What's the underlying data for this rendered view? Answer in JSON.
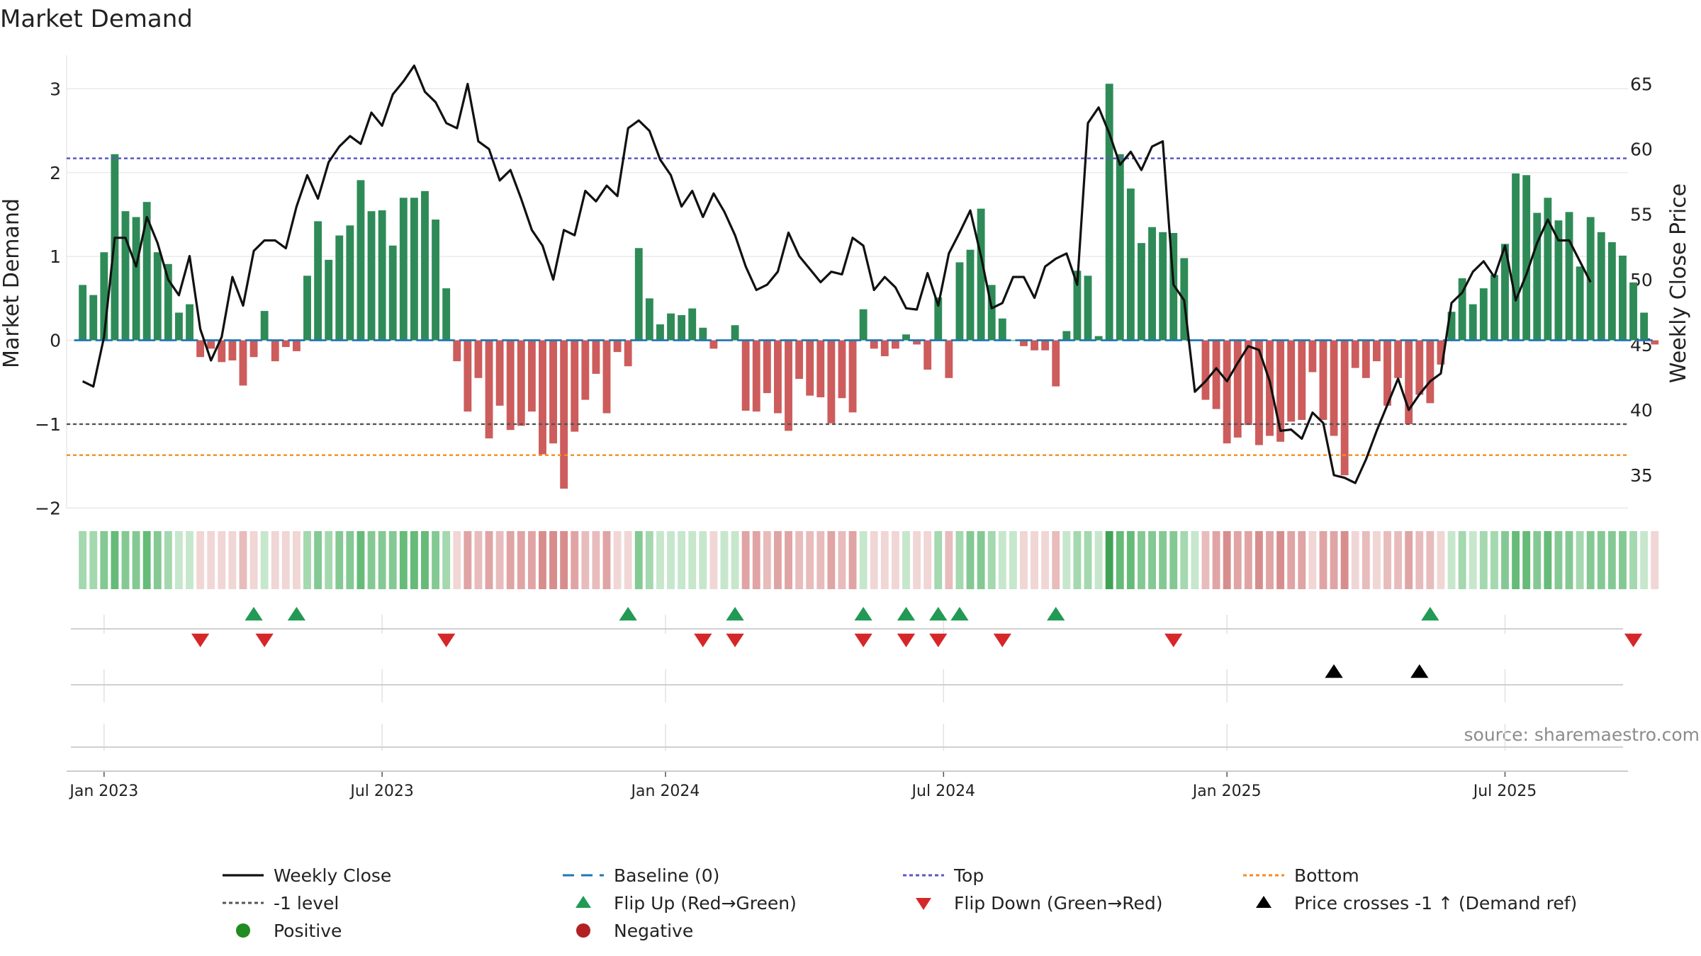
{
  "chart_data": {
    "type": "bar",
    "title": "Market Demand",
    "ylabel": "Market Demand",
    "y2label": "Weekly Close Price",
    "source": "source: sharemaestro.com",
    "ylim": [
      -2.2,
      3.4
    ],
    "y2lim": [
      31.2,
      67.2
    ],
    "yticks": [
      3,
      2,
      1,
      0,
      -1,
      -2
    ],
    "yticklabels": [
      "3",
      "2",
      "1",
      "0",
      "−1",
      "−2"
    ],
    "y2ticks": [
      65,
      60,
      55,
      50,
      45,
      40,
      35
    ],
    "y2ticklabels": [
      "65",
      "60",
      "55",
      "50",
      "45",
      "40",
      "35"
    ],
    "x_index_range": [
      -1.5,
      144.5
    ],
    "xticks": [
      {
        "label": "Jan 2023",
        "index": 2
      },
      {
        "label": "Jul 2023",
        "index": 28
      },
      {
        "label": "Jan 2024",
        "index": 54.5
      },
      {
        "label": "Jul 2024",
        "index": 80.5
      },
      {
        "label": "Jan 2025",
        "index": 107
      },
      {
        "label": "Jul 2025",
        "index": 133
      }
    ],
    "reference_lines": {
      "top": 2.17,
      "minus_one": -1,
      "bottom": -1.37,
      "baseline": 0
    },
    "demand": [
      0.66,
      0.54,
      1.05,
      2.22,
      1.54,
      1.47,
      1.65,
      1.05,
      0.91,
      0.33,
      0.43,
      -0.2,
      -0.1,
      -0.26,
      -0.24,
      -0.54,
      -0.2,
      0.35,
      -0.25,
      -0.08,
      -0.13,
      0.77,
      1.42,
      0.96,
      1.25,
      1.37,
      1.91,
      1.54,
      1.55,
      1.13,
      1.7,
      1.7,
      1.78,
      1.44,
      0.62,
      -0.25,
      -0.85,
      -0.45,
      -1.17,
      -0.78,
      -1.07,
      -1.02,
      -0.85,
      -1.36,
      -1.23,
      -1.77,
      -1.09,
      -0.71,
      -0.4,
      -0.87,
      -0.14,
      -0.31,
      1.1,
      0.5,
      0.19,
      0.32,
      0.3,
      0.38,
      0.15,
      -0.1,
      0.0,
      0.18,
      -0.84,
      -0.85,
      -0.63,
      -0.87,
      -1.08,
      -0.46,
      -0.66,
      -0.68,
      -0.99,
      -0.69,
      -0.86,
      0.37,
      -0.1,
      -0.19,
      -0.1,
      0.07,
      -0.05,
      -0.35,
      0.51,
      -0.45,
      0.93,
      1.08,
      1.57,
      0.66,
      0.26,
      0.0,
      -0.07,
      -0.12,
      -0.12,
      -0.55,
      0.11,
      0.83,
      0.77,
      0.05,
      3.06,
      2.22,
      1.81,
      1.16,
      1.35,
      1.29,
      1.28,
      0.98,
      0.0,
      -0.71,
      -0.82,
      -1.23,
      -1.16,
      -1.01,
      -1.25,
      -1.14,
      -1.21,
      -0.97,
      -0.95,
      -0.38,
      -0.95,
      -1.14,
      -1.61,
      -0.33,
      -0.45,
      -0.25,
      -0.78,
      -0.45,
      -1.0,
      -0.65,
      -0.75,
      -0.29,
      0.34,
      0.74,
      0.43,
      0.62,
      0.78,
      1.15,
      1.99,
      1.97,
      1.52,
      1.7,
      1.43,
      1.53,
      0.88,
      1.47,
      1.29,
      1.17,
      1.01,
      0.69,
      0.33,
      -0.05
    ],
    "close": [
      42.2,
      41.8,
      45.6,
      53.2,
      53.2,
      51.0,
      54.8,
      52.8,
      50.0,
      48.8,
      51.8,
      46.2,
      43.8,
      45.6,
      50.2,
      48.0,
      52.2,
      53.0,
      53.0,
      52.4,
      55.6,
      58.0,
      56.2,
      59.0,
      60.2,
      61.0,
      60.4,
      62.8,
      61.8,
      64.2,
      65.2,
      66.4,
      64.4,
      63.6,
      62.0,
      61.6,
      65.0,
      60.6,
      60.0,
      57.6,
      58.4,
      56.2,
      53.8,
      52.6,
      50.0,
      53.8,
      53.4,
      56.8,
      56.0,
      57.2,
      56.4,
      61.6,
      62.2,
      61.4,
      59.2,
      58.0,
      55.6,
      56.8,
      54.8,
      56.6,
      55.2,
      53.4,
      51.0,
      49.2,
      49.6,
      50.6,
      53.6,
      51.8,
      50.8,
      49.8,
      50.6,
      50.4,
      53.2,
      52.6,
      49.2,
      50.2,
      49.4,
      47.8,
      47.7,
      50.5,
      48.0,
      52.0,
      53.6,
      55.3,
      51.8,
      47.8,
      48.2,
      50.2,
      50.2,
      48.6,
      51.0,
      51.6,
      52.0,
      49.6,
      62.0,
      63.2,
      61.2,
      58.8,
      59.8,
      58.4,
      60.2,
      60.6,
      49.6,
      48.4,
      41.4,
      42.2,
      43.2,
      42.2,
      43.6,
      44.9,
      44.6,
      42.2,
      38.4,
      38.5,
      37.8,
      39.8,
      39.0,
      35.0,
      34.8,
      34.4,
      36.2,
      38.4,
      40.4,
      42.4,
      40.0,
      41.2,
      42.2,
      42.8,
      48.2,
      49.0,
      50.6,
      51.4,
      50.2,
      52.6,
      48.4,
      50.4,
      52.8,
      54.6,
      53.0,
      53.0,
      51.4,
      49.8
    ],
    "flip_up_indices": [
      16,
      20,
      51,
      61,
      73,
      77,
      80,
      82,
      91,
      126
    ],
    "flip_down_indices": [
      11,
      17,
      34,
      58,
      61,
      73,
      77,
      80,
      86,
      102,
      145
    ],
    "price_cross_indices": [
      117,
      125
    ],
    "legend": {
      "location": "bottom",
      "entries": [
        {
          "label": "Weekly Close",
          "marker": "line",
          "color": "#111111"
        },
        {
          "label": "Baseline (0)",
          "marker": "dash",
          "color": "#1f77b4"
        },
        {
          "label": "Top",
          "marker": "dot",
          "color": "#5b57c2"
        },
        {
          "label": "Bottom",
          "marker": "dot",
          "color": "#f28e1c"
        },
        {
          "label": "-1 level",
          "marker": "dot",
          "color": "#555555"
        },
        {
          "label": "Flip Up (Red→Green)",
          "marker": "tri-up",
          "color": "#229954"
        },
        {
          "label": "Flip Down (Green→Red)",
          "marker": "tri-down",
          "color": "#d62728"
        },
        {
          "label": "Price crosses -1 ↑ (Demand ref)",
          "marker": "tri-up",
          "color": "#000000"
        },
        {
          "label": "Positive",
          "marker": "circle",
          "color": "#228b22"
        },
        {
          "label": "Negative",
          "marker": "circle",
          "color": "#b22222"
        }
      ]
    },
    "colors": {
      "positive_bar": "#2e8b57",
      "negative_bar": "#cd5c5c",
      "close_line": "#111111",
      "top_line": "#5b57c2",
      "bottom_line": "#f28e1c",
      "minus_one_line": "#555555",
      "baseline": "#1f77b4",
      "grid": "#e6e6e6",
      "axis_text": "#222222",
      "source_text": "#8c8c8c"
    }
  }
}
